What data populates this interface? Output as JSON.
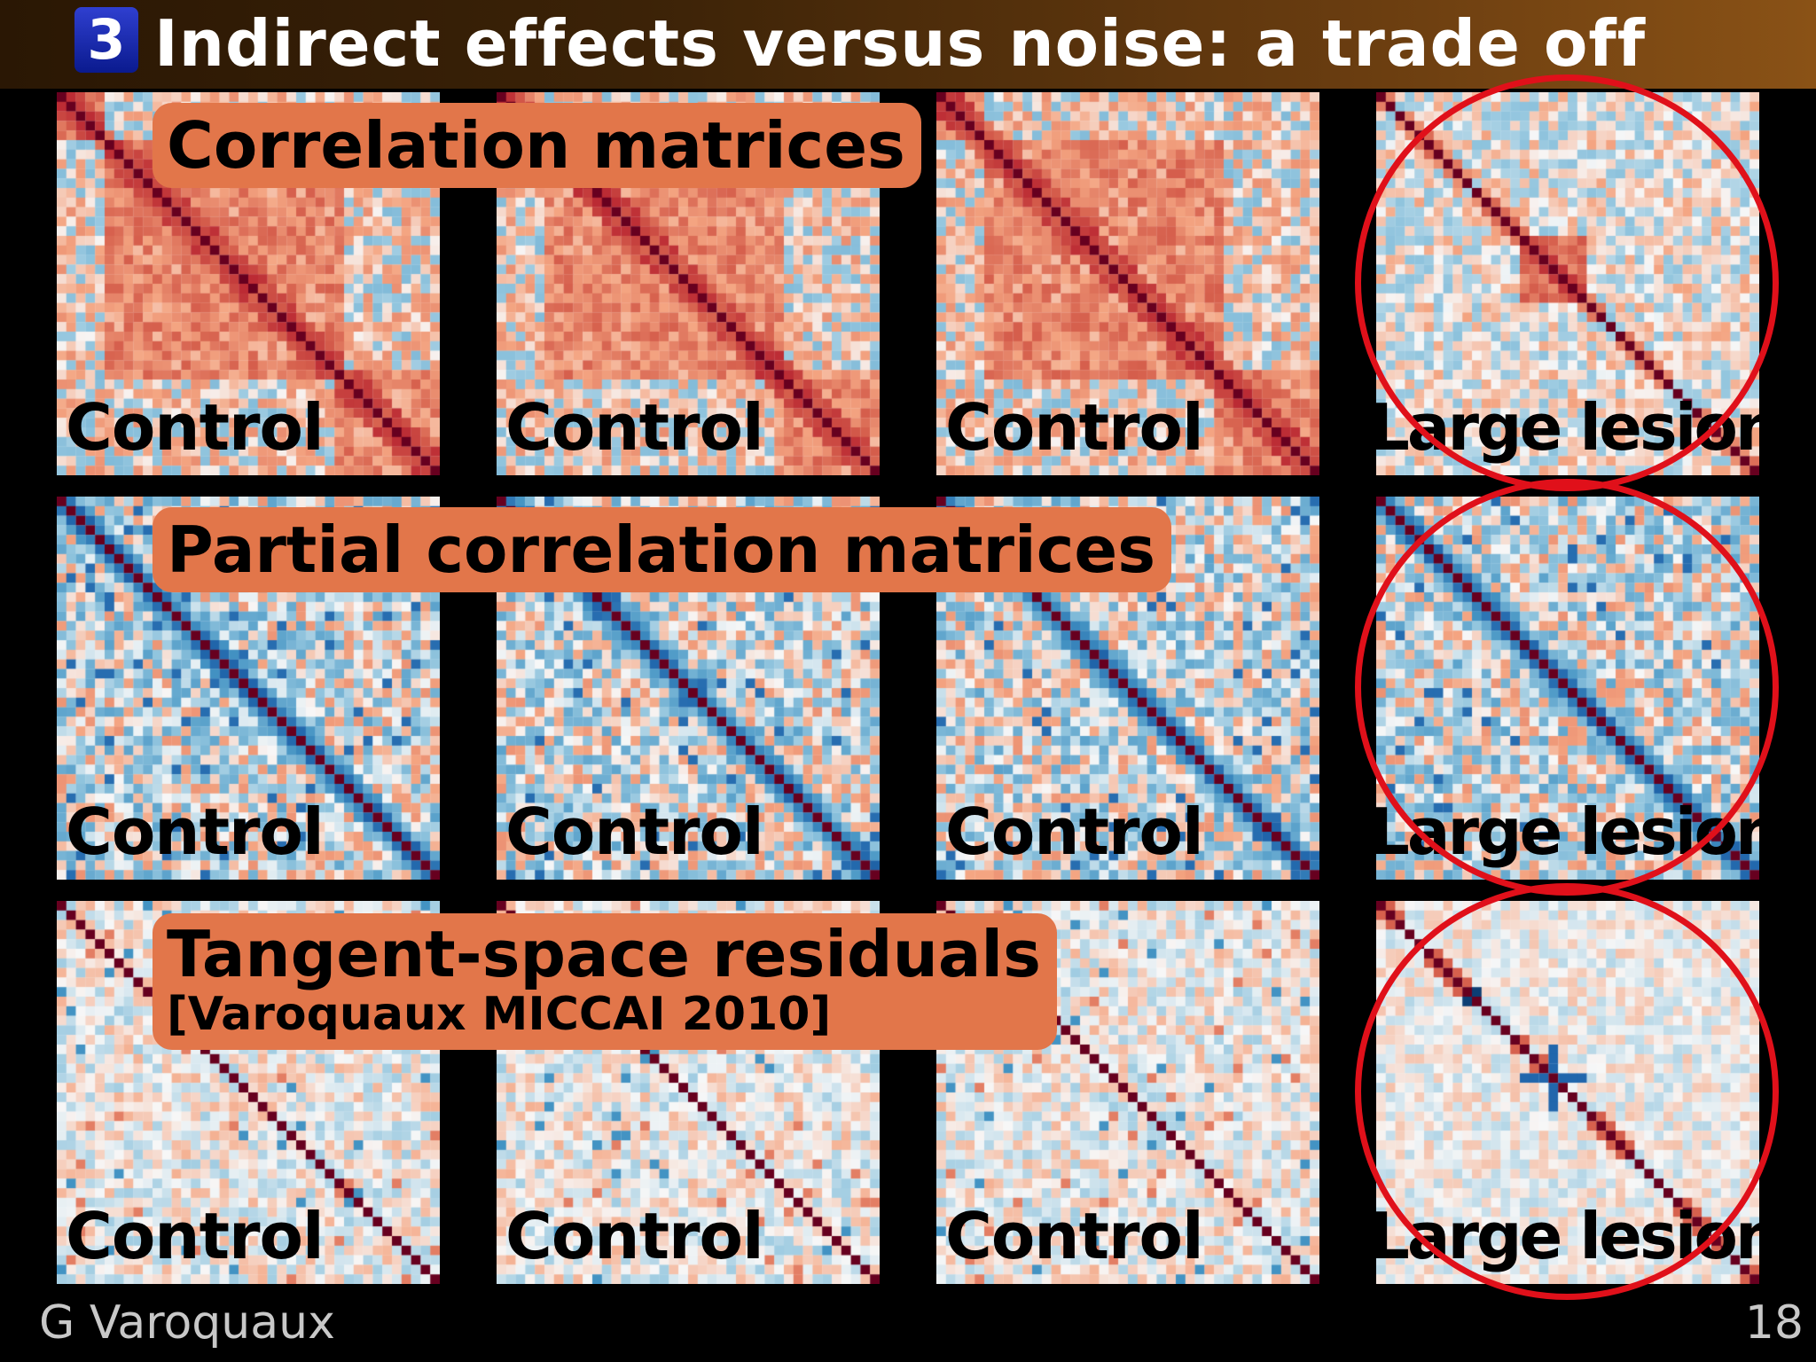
{
  "slide": {
    "section_number": "3",
    "title": "Indirect effects versus noise: a trade off",
    "author": "G Varoquaux",
    "page_number": "18"
  },
  "rows": [
    {
      "callout": "Correlation matrices",
      "callout_sub": "",
      "kind": "correlation",
      "panel_labels": [
        "Control",
        "Control",
        "Control",
        "Large lesion"
      ]
    },
    {
      "callout": "Partial correlation matrices",
      "callout_sub": "",
      "kind": "partial",
      "panel_labels": [
        "Control",
        "Control",
        "Control",
        "Large lesion"
      ]
    },
    {
      "callout": "Tangent-space residuals",
      "callout_sub": "[Varoquaux MICCAI 2010]",
      "kind": "tangent",
      "panel_labels": [
        "Control",
        "Control",
        "Control",
        "Large lesion"
      ]
    }
  ],
  "colors": {
    "callout_bg": "#e2764a",
    "ring": "#e0101a",
    "diagonal": "#67001f",
    "title_badge": "#1a2bb0"
  }
}
